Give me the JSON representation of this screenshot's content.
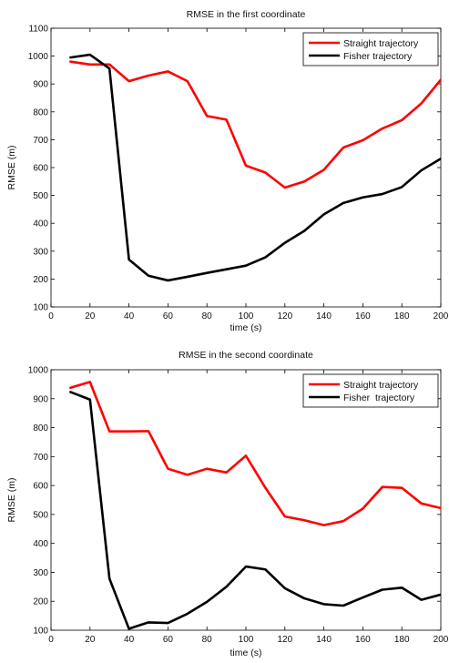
{
  "chart_data": [
    {
      "type": "line",
      "title": "RMSE in the first coordinate",
      "xlabel": "time (s)",
      "ylabel": "RMSE (m)",
      "xlim": [
        0,
        200
      ],
      "ylim": [
        100,
        1100
      ],
      "xticks": [
        0,
        20,
        40,
        60,
        80,
        100,
        120,
        140,
        160,
        180,
        200
      ],
      "yticks": [
        100,
        200,
        300,
        400,
        500,
        600,
        700,
        800,
        900,
        1000,
        1100
      ],
      "grid": false,
      "legend_position": "top-right",
      "x": [
        10,
        20,
        30,
        40,
        50,
        60,
        70,
        80,
        90,
        100,
        110,
        120,
        130,
        140,
        150,
        160,
        170,
        180,
        190,
        200
      ],
      "series": [
        {
          "name": "Straight trajectory",
          "color": "#ff0000",
          "values": [
            980,
            970,
            970,
            910,
            930,
            945,
            910,
            785,
            772,
            607,
            582,
            528,
            550,
            592,
            672,
            698,
            740,
            770,
            830,
            915
          ]
        },
        {
          "name": "Fisher trajectory",
          "color": "#000000",
          "values": [
            995,
            1005,
            955,
            270,
            212,
            195,
            208,
            222,
            235,
            248,
            278,
            330,
            373,
            432,
            473,
            493,
            505,
            530,
            590,
            632
          ]
        }
      ]
    },
    {
      "type": "line",
      "title": "RMSE in the second coordinate",
      "xlabel": "time (s)",
      "ylabel": "RMSE (m)",
      "xlim": [
        0,
        200
      ],
      "ylim": [
        100,
        1000
      ],
      "xticks": [
        0,
        20,
        40,
        60,
        80,
        100,
        120,
        140,
        160,
        180,
        200
      ],
      "yticks": [
        100,
        200,
        300,
        400,
        500,
        600,
        700,
        800,
        900,
        1000
      ],
      "grid": false,
      "legend_position": "top-right",
      "x": [
        10,
        20,
        30,
        40,
        50,
        60,
        70,
        80,
        90,
        100,
        110,
        120,
        130,
        140,
        150,
        160,
        170,
        180,
        190,
        200
      ],
      "series": [
        {
          "name": "Straight trajectory",
          "color": "#ff0000",
          "values": [
            938,
            958,
            787,
            787,
            788,
            658,
            637,
            658,
            645,
            703,
            592,
            493,
            480,
            463,
            477,
            520,
            595,
            592,
            538,
            522
          ]
        },
        {
          "name": "Fisher  trajectory",
          "color": "#000000",
          "values": [
            923,
            897,
            278,
            105,
            127,
            125,
            157,
            198,
            250,
            320,
            310,
            245,
            210,
            190,
            185,
            213,
            240,
            247,
            205,
            223
          ]
        }
      ]
    }
  ]
}
